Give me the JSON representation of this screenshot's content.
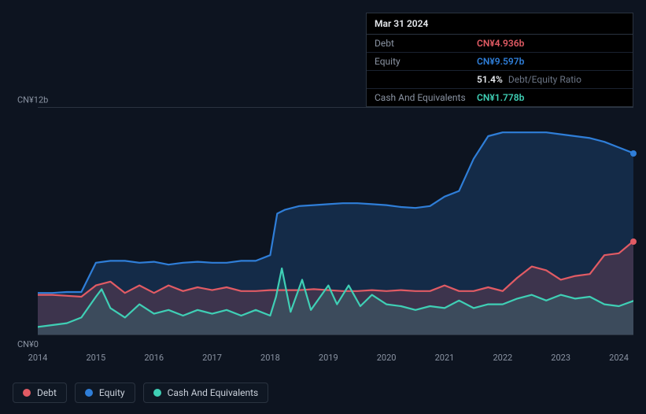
{
  "tooltip": {
    "date": "Mar 31 2024",
    "rows": {
      "debt": {
        "label": "Debt",
        "value": "CN¥4.936b"
      },
      "equity": {
        "label": "Equity",
        "value": "CN¥9.597b"
      },
      "ratio": {
        "label": "",
        "value": "51.4%",
        "suffix": "Debt/Equity Ratio"
      },
      "cash": {
        "label": "Cash And Equivalents",
        "value": "CN¥1.778b"
      }
    }
  },
  "chart": {
    "type": "line",
    "background_color": "#0d1420",
    "grid_color": "#2a3340",
    "text_color": "#8a93a2",
    "label_fontsize": 11,
    "ylim": [
      0,
      12
    ],
    "y_unit": "CN¥",
    "y_suffix": "b",
    "y_labels": {
      "top": "CN¥12b",
      "bottom": "CN¥0"
    },
    "x_labels": [
      "2014",
      "2015",
      "2016",
      "2017",
      "2018",
      "2019",
      "2020",
      "2021",
      "2022",
      "2023",
      "2024"
    ],
    "x_domain": [
      2014,
      2024.25
    ],
    "end_markers": [
      {
        "series": "equity",
        "x": 2024.25,
        "y": 9.597,
        "color": "#2f7ed8"
      },
      {
        "series": "debt",
        "x": 2024.25,
        "y": 4.936,
        "color": "#e15b64"
      }
    ],
    "series": [
      {
        "name": "equity",
        "label": "Equity",
        "color": "#2f7ed8",
        "fill_color": "rgba(47,126,216,0.22)",
        "line_width": 2.2,
        "fill": true,
        "data": [
          [
            2014.0,
            2.2
          ],
          [
            2014.25,
            2.2
          ],
          [
            2014.5,
            2.25
          ],
          [
            2014.75,
            2.25
          ],
          [
            2015.0,
            3.8
          ],
          [
            2015.25,
            3.9
          ],
          [
            2015.5,
            3.9
          ],
          [
            2015.75,
            3.8
          ],
          [
            2016.0,
            3.85
          ],
          [
            2016.25,
            3.7
          ],
          [
            2016.5,
            3.8
          ],
          [
            2016.75,
            3.85
          ],
          [
            2017.0,
            3.8
          ],
          [
            2017.25,
            3.8
          ],
          [
            2017.5,
            3.9
          ],
          [
            2017.75,
            3.9
          ],
          [
            2018.0,
            4.2
          ],
          [
            2018.12,
            6.4
          ],
          [
            2018.25,
            6.6
          ],
          [
            2018.5,
            6.8
          ],
          [
            2018.75,
            6.85
          ],
          [
            2019.0,
            6.9
          ],
          [
            2019.25,
            6.95
          ],
          [
            2019.5,
            6.95
          ],
          [
            2019.75,
            6.9
          ],
          [
            2020.0,
            6.85
          ],
          [
            2020.25,
            6.75
          ],
          [
            2020.5,
            6.7
          ],
          [
            2020.75,
            6.8
          ],
          [
            2021.0,
            7.3
          ],
          [
            2021.25,
            7.6
          ],
          [
            2021.5,
            9.3
          ],
          [
            2021.75,
            10.5
          ],
          [
            2022.0,
            10.7
          ],
          [
            2022.25,
            10.7
          ],
          [
            2022.5,
            10.7
          ],
          [
            2022.75,
            10.7
          ],
          [
            2023.0,
            10.6
          ],
          [
            2023.25,
            10.5
          ],
          [
            2023.5,
            10.4
          ],
          [
            2023.75,
            10.2
          ],
          [
            2024.0,
            9.9
          ],
          [
            2024.25,
            9.6
          ]
        ]
      },
      {
        "name": "debt",
        "label": "Debt",
        "color": "#e15b64",
        "fill_color": "rgba(225,91,100,0.20)",
        "line_width": 2.2,
        "fill": true,
        "data": [
          [
            2014.0,
            2.1
          ],
          [
            2014.25,
            2.1
          ],
          [
            2014.5,
            2.05
          ],
          [
            2014.75,
            2.0
          ],
          [
            2015.0,
            2.6
          ],
          [
            2015.25,
            2.8
          ],
          [
            2015.5,
            2.2
          ],
          [
            2015.75,
            2.6
          ],
          [
            2016.0,
            2.2
          ],
          [
            2016.25,
            2.6
          ],
          [
            2016.5,
            2.3
          ],
          [
            2016.75,
            2.5
          ],
          [
            2017.0,
            2.35
          ],
          [
            2017.25,
            2.5
          ],
          [
            2017.5,
            2.3
          ],
          [
            2017.75,
            2.3
          ],
          [
            2018.0,
            2.35
          ],
          [
            2018.25,
            2.35
          ],
          [
            2018.5,
            2.35
          ],
          [
            2018.75,
            2.4
          ],
          [
            2019.0,
            2.35
          ],
          [
            2019.25,
            2.3
          ],
          [
            2019.5,
            2.3
          ],
          [
            2019.75,
            2.35
          ],
          [
            2020.0,
            2.3
          ],
          [
            2020.25,
            2.35
          ],
          [
            2020.5,
            2.3
          ],
          [
            2020.75,
            2.3
          ],
          [
            2021.0,
            2.6
          ],
          [
            2021.25,
            2.3
          ],
          [
            2021.5,
            2.3
          ],
          [
            2021.75,
            2.5
          ],
          [
            2022.0,
            2.3
          ],
          [
            2022.25,
            3.0
          ],
          [
            2022.5,
            3.6
          ],
          [
            2022.75,
            3.4
          ],
          [
            2023.0,
            2.9
          ],
          [
            2023.25,
            3.1
          ],
          [
            2023.5,
            3.2
          ],
          [
            2023.75,
            4.2
          ],
          [
            2024.0,
            4.3
          ],
          [
            2024.25,
            4.94
          ]
        ]
      },
      {
        "name": "cash",
        "label": "Cash And Equivalents",
        "color": "#3fcfb5",
        "fill_color": "rgba(63,207,181,0.15)",
        "line_width": 2.2,
        "fill": true,
        "data": [
          [
            2014.0,
            0.4
          ],
          [
            2014.25,
            0.5
          ],
          [
            2014.5,
            0.6
          ],
          [
            2014.75,
            0.9
          ],
          [
            2015.0,
            2.0
          ],
          [
            2015.1,
            2.4
          ],
          [
            2015.25,
            1.4
          ],
          [
            2015.5,
            0.9
          ],
          [
            2015.75,
            1.6
          ],
          [
            2016.0,
            1.1
          ],
          [
            2016.25,
            1.3
          ],
          [
            2016.5,
            1.0
          ],
          [
            2016.75,
            1.3
          ],
          [
            2017.0,
            1.1
          ],
          [
            2017.25,
            1.3
          ],
          [
            2017.5,
            1.0
          ],
          [
            2017.75,
            1.3
          ],
          [
            2018.0,
            1.0
          ],
          [
            2018.1,
            2.0
          ],
          [
            2018.2,
            3.5
          ],
          [
            2018.35,
            1.2
          ],
          [
            2018.55,
            2.9
          ],
          [
            2018.7,
            1.3
          ],
          [
            2019.0,
            2.6
          ],
          [
            2019.15,
            1.6
          ],
          [
            2019.35,
            2.6
          ],
          [
            2019.55,
            1.5
          ],
          [
            2019.75,
            2.1
          ],
          [
            2020.0,
            1.6
          ],
          [
            2020.25,
            1.5
          ],
          [
            2020.5,
            1.3
          ],
          [
            2020.75,
            1.5
          ],
          [
            2021.0,
            1.4
          ],
          [
            2021.25,
            1.8
          ],
          [
            2021.5,
            1.4
          ],
          [
            2021.75,
            1.6
          ],
          [
            2022.0,
            1.6
          ],
          [
            2022.25,
            1.9
          ],
          [
            2022.5,
            2.1
          ],
          [
            2022.75,
            1.8
          ],
          [
            2023.0,
            2.1
          ],
          [
            2023.25,
            1.9
          ],
          [
            2023.5,
            2.0
          ],
          [
            2023.75,
            1.6
          ],
          [
            2024.0,
            1.5
          ],
          [
            2024.25,
            1.78
          ]
        ]
      }
    ]
  },
  "legend": {
    "items": [
      {
        "key": "debt",
        "label": "Debt",
        "color": "#e15b64"
      },
      {
        "key": "equity",
        "label": "Equity",
        "color": "#2f7ed8"
      },
      {
        "key": "cash",
        "label": "Cash And Equivalents",
        "color": "#3fcfb5"
      }
    ]
  }
}
